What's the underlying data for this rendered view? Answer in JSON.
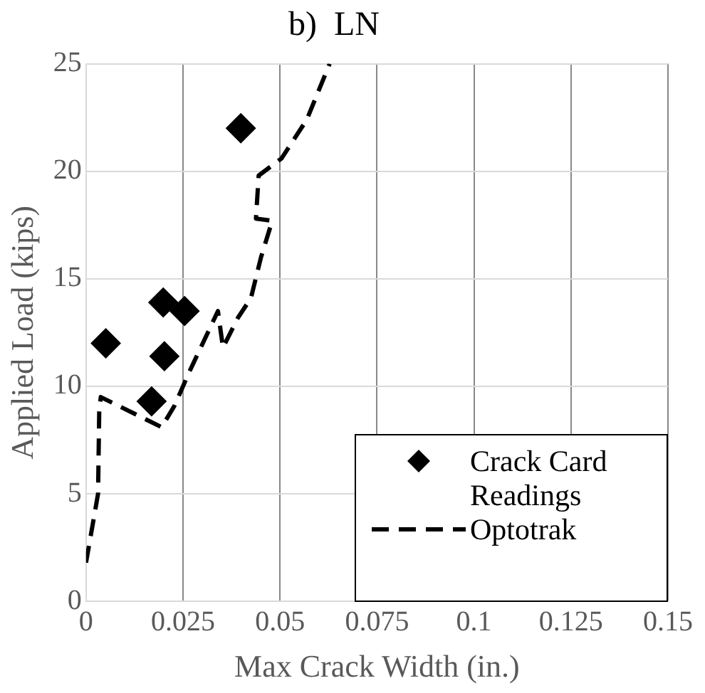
{
  "chart_data": {
    "type": "scatter",
    "title": "b)  LN",
    "xlabel": "Max Crack Width (in.)",
    "ylabel": "Applied Load (kips)",
    "xlim": [
      0,
      0.15
    ],
    "xticks": [
      0,
      0.025,
      0.05,
      0.075,
      0.1,
      0.125,
      0.15
    ],
    "ylim": [
      0,
      25
    ],
    "yticks": [
      0,
      5,
      10,
      15,
      20,
      25
    ],
    "grid": true,
    "legend": "bottom right",
    "series": [
      {
        "name": "Crack Card Readings",
        "color": "#000000",
        "marker": "diamond",
        "x": [
          0.0051,
          0.0199,
          0.0254,
          0.0202,
          0.0169,
          0.0399
        ],
        "values": [
          12.0,
          13.9,
          13.5,
          11.4,
          9.3,
          22.0
        ]
      },
      {
        "name": "Optotrak",
        "type": "line",
        "color": "#000000",
        "marker": "none",
        "line_style": "dashed",
        "x": [
          0,
          0.0031,
          0.0034,
          0.0038,
          0.0195,
          0.0228,
          0.0267,
          0.034,
          0.0353,
          0.0392,
          0.0425,
          0.0451,
          0.048,
          0.0438,
          0.0445,
          0.0504,
          0.0569,
          0.0628
        ],
        "values": [
          1.8,
          5.0,
          8.8,
          9.5,
          8.1,
          9.1,
          10.7,
          13.5,
          11.8,
          13.2,
          14.1,
          16.0,
          17.7,
          17.8,
          19.8,
          20.6,
          22.4,
          25.0
        ]
      }
    ]
  }
}
